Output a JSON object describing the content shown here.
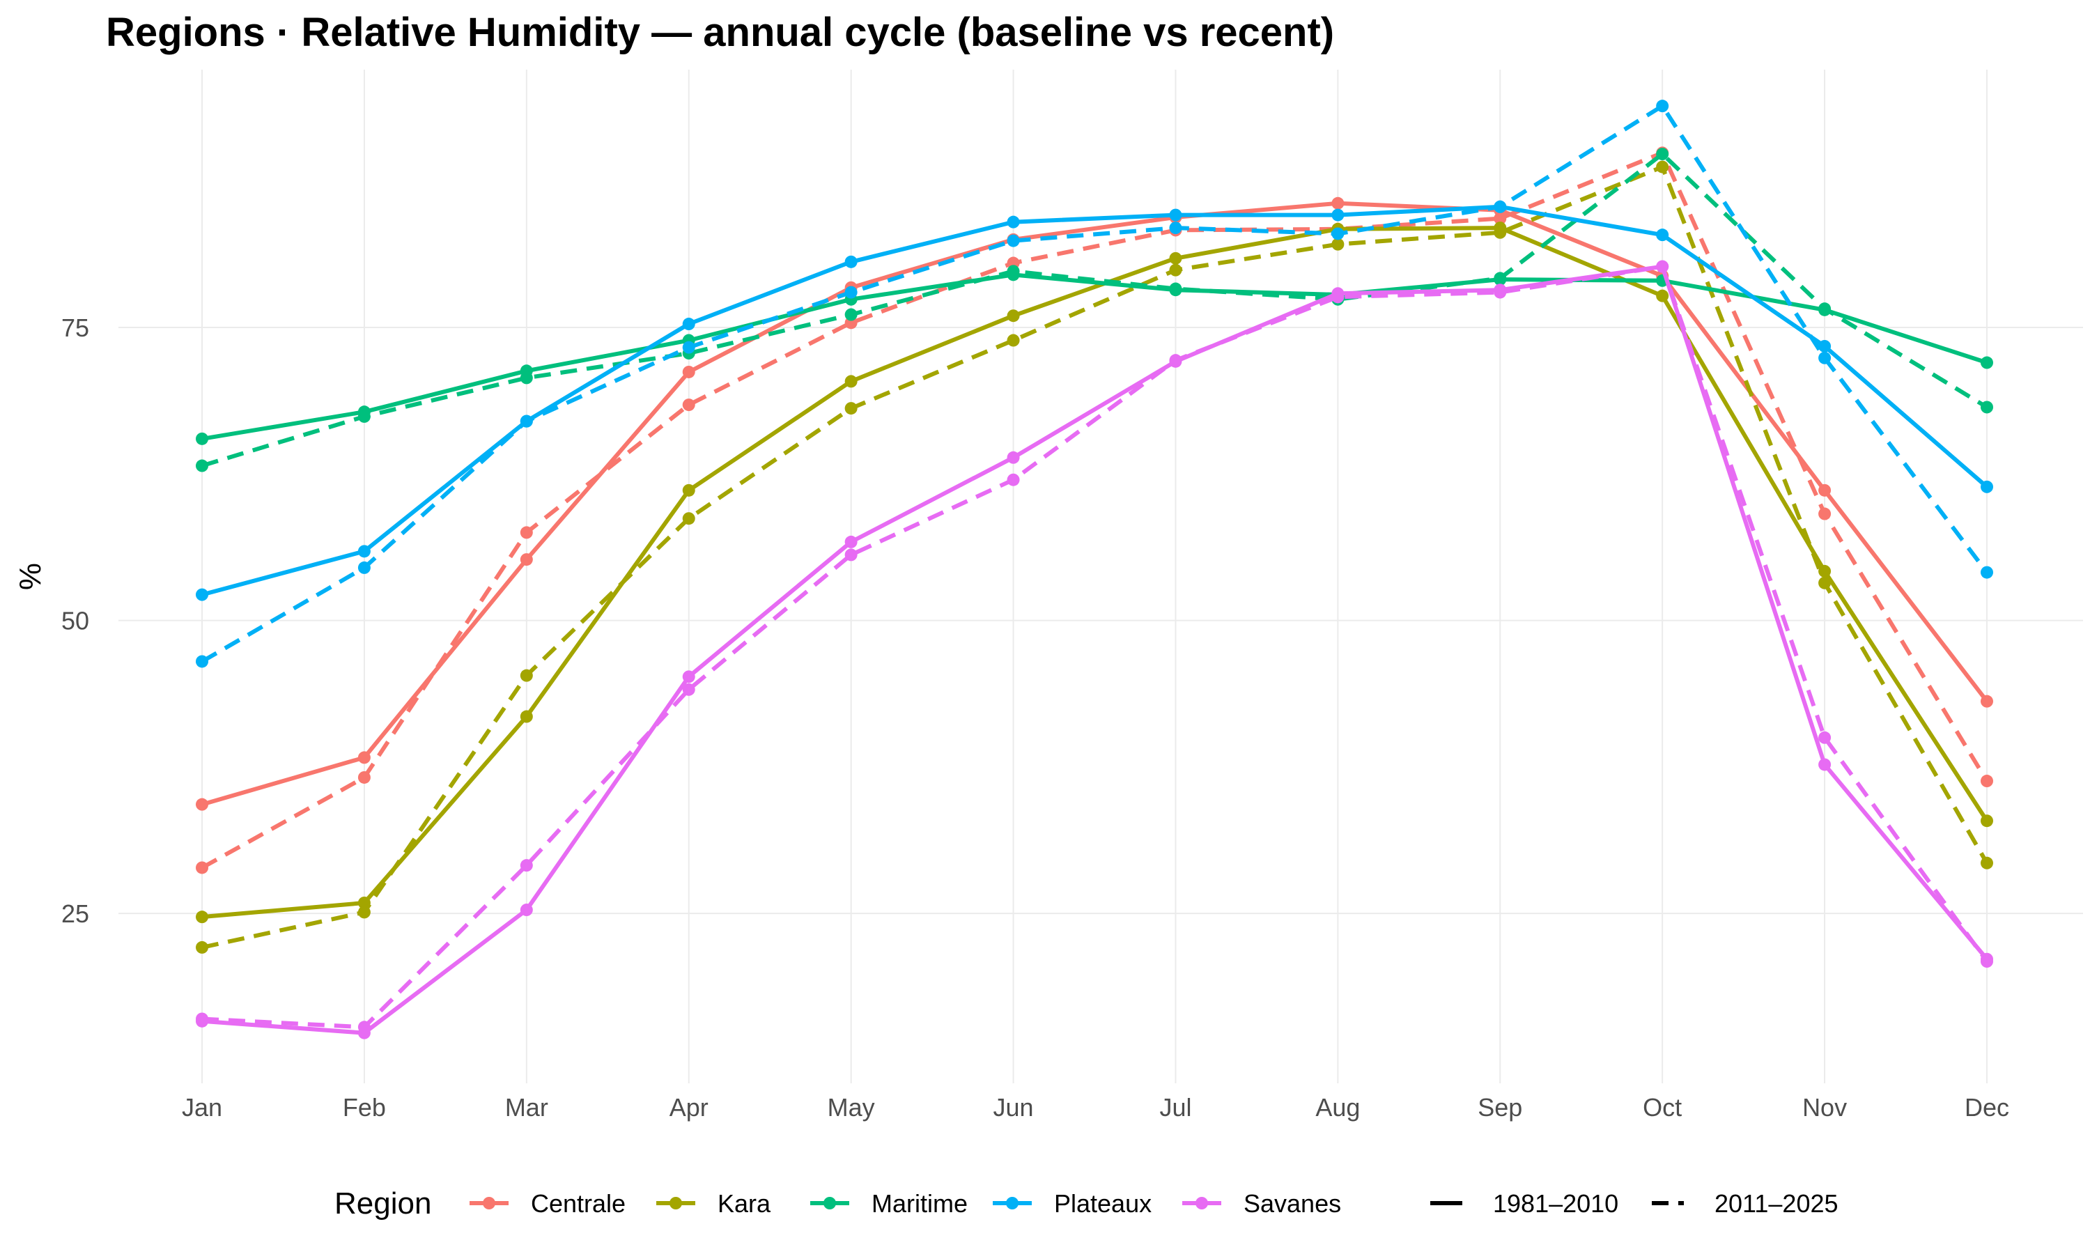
{
  "chart_data": {
    "type": "line",
    "title": "Regions · Relative Humidity — annual cycle (baseline vs recent)",
    "xlabel": "",
    "ylabel": "%",
    "categories": [
      "Jan",
      "Feb",
      "Mar",
      "Apr",
      "May",
      "Jun",
      "Jul",
      "Aug",
      "Sep",
      "Oct",
      "Nov",
      "Dec"
    ],
    "ylim": [
      10.5,
      97
    ],
    "yticks": [
      25,
      50,
      75
    ],
    "grid": true,
    "legend": {
      "position": "bottom",
      "color_title": "Region",
      "linetype_labels": [
        "1981–2010",
        "2011–2025"
      ]
    },
    "series": [
      {
        "name": "Centrale",
        "period": "1981–2010",
        "color": "#F8766D",
        "dash": "solid",
        "values": [
          34.3,
          38.3,
          55.2,
          71.2,
          78.4,
          82.5,
          84.4,
          85.6,
          85.0,
          79.4,
          61.1,
          43.1
        ]
      },
      {
        "name": "Centrale",
        "period": "2011–2025",
        "color": "#F8766D",
        "dash": "dashed",
        "values": [
          28.9,
          36.6,
          57.5,
          68.4,
          75.4,
          80.5,
          83.3,
          83.4,
          84.3,
          89.9,
          59.1,
          36.3
        ]
      },
      {
        "name": "Kara",
        "period": "1981–2010",
        "color": "#A3A500",
        "dash": "solid",
        "values": [
          24.7,
          25.9,
          41.8,
          61.1,
          70.4,
          76.0,
          80.9,
          83.4,
          83.5,
          77.7,
          54.2,
          32.9
        ]
      },
      {
        "name": "Kara",
        "period": "2011–2025",
        "color": "#A3A500",
        "dash": "dashed",
        "values": [
          22.1,
          25.1,
          45.3,
          58.7,
          68.1,
          73.9,
          79.9,
          82.1,
          83.1,
          88.7,
          53.2,
          29.3
        ]
      },
      {
        "name": "Maritime",
        "period": "1981–2010",
        "color": "#00BF7D",
        "dash": "solid",
        "values": [
          65.5,
          67.8,
          71.3,
          73.9,
          77.4,
          79.5,
          78.2,
          77.8,
          79.1,
          79.0,
          76.5,
          72.0
        ]
      },
      {
        "name": "Maritime",
        "period": "2011–2025",
        "color": "#00BF7D",
        "dash": "dashed",
        "values": [
          63.2,
          67.4,
          70.7,
          72.8,
          76.1,
          79.8,
          78.3,
          77.4,
          79.2,
          89.8,
          76.6,
          68.2
        ]
      },
      {
        "name": "Plateaux",
        "period": "1981–2010",
        "color": "#00B0F6",
        "dash": "solid",
        "values": [
          52.2,
          55.9,
          67.0,
          75.3,
          80.6,
          84.0,
          84.6,
          84.6,
          85.3,
          82.9,
          73.4,
          61.4
        ]
      },
      {
        "name": "Plateaux",
        "period": "2011–2025",
        "color": "#00B0F6",
        "dash": "dashed",
        "values": [
          46.5,
          54.5,
          67.0,
          73.3,
          78.0,
          82.4,
          83.5,
          83.0,
          85.3,
          93.9,
          72.4,
          54.1
        ]
      },
      {
        "name": "Savanes",
        "period": "1981–2010",
        "color": "#E76BF3",
        "dash": "solid",
        "values": [
          15.8,
          14.8,
          25.3,
          45.2,
          56.7,
          63.9,
          72.1,
          77.9,
          78.2,
          80.2,
          37.7,
          21.1
        ]
      },
      {
        "name": "Savanes",
        "period": "2011–2025",
        "color": "#E76BF3",
        "dash": "dashed",
        "values": [
          16.0,
          15.3,
          29.1,
          44.1,
          55.6,
          62.0,
          72.2,
          77.6,
          78.0,
          80.2,
          40.0,
          20.9
        ]
      }
    ]
  }
}
